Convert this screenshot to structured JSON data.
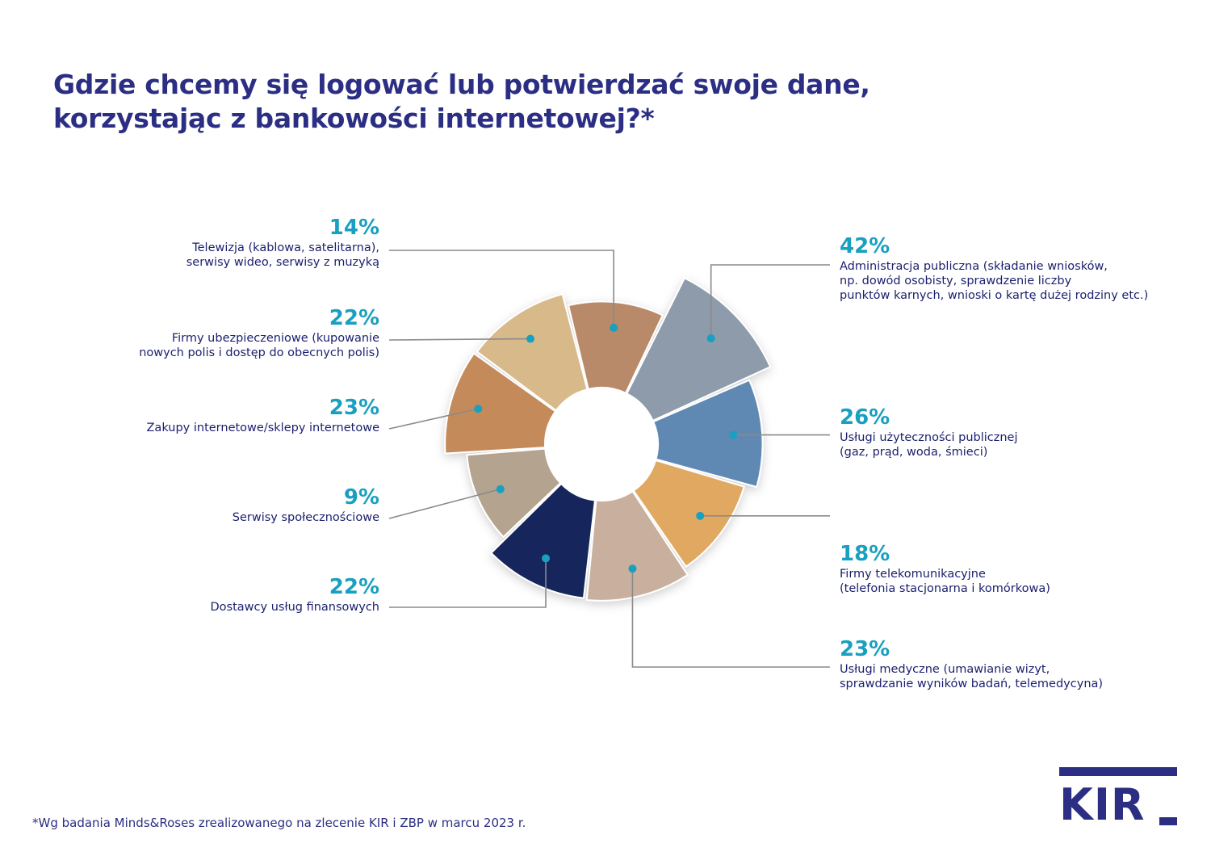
{
  "title": {
    "line1": "Gdzie chcemy się logować lub potwierdzać swoje dane,",
    "line2": "korzystając z bankowości internetowej?*"
  },
  "chart_data": {
    "type": "pie",
    "categories": [
      "Telewizja (kablowa, satelitarna), serwisy wideo, serwisy z muzyką",
      "Administracja publiczna (składanie wniosków, np. dowód osobisty, sprawdzenie liczby punktów karnych, wnioski o kartę dużej rodziny etc.)",
      "Usługi użyteczności publicznej (gaz, prąd, woda, śmieci)",
      "Firmy telekomunikacyjne (telefonia stacjonarna i komórkowa)",
      "Usługi medyczne (umawianie wizyt, sprawdzanie wyników badań, telemedycyna)",
      "Dostawcy usług finansowych",
      "Serwisy społecznościowe",
      "Zakupy internetowe/sklepy internetowe",
      "Firmy ubezpieczeniowe (kupowanie nowych polis i dostęp do obecnych polis)"
    ],
    "values": [
      14,
      42,
      26,
      18,
      23,
      22,
      9,
      23,
      22
    ],
    "unit": "%"
  },
  "labels": [
    {
      "pct": "14%",
      "desc": "Telewizja (kablowa, satelitarna),\nserwisy wideo, serwisy z muzyką"
    },
    {
      "pct": "42%",
      "desc": "Administracja publiczna (składanie wniosków,\nnp. dowód osobisty, sprawdzenie liczby\npunktów karnych, wnioski o kartę dużej rodziny etc.)"
    },
    {
      "pct": "26%",
      "desc": "Usługi użyteczności publicznej\n(gaz, prąd, woda, śmieci)"
    },
    {
      "pct": "18%",
      "desc": "Firmy telekomunikacyjne\n(telefonia stacjonarna i komórkowa)"
    },
    {
      "pct": "23%",
      "desc": "Usługi medyczne (umawianie wizyt,\nsprawdzanie wyników badań, telemedycyna)"
    },
    {
      "pct": "22%",
      "desc": "Dostawcy usług finansowych"
    },
    {
      "pct": "9%",
      "desc": "Serwisy społecznościowe"
    },
    {
      "pct": "23%",
      "desc": "Zakupy internetowe/sklepy internetowe"
    },
    {
      "pct": "22%",
      "desc": "Firmy ubezpieczeniowe (kupowanie\nnowych polis i dostęp do obecnych polis)"
    }
  ],
  "colors": {
    "title": "#2b2e83",
    "accent": "#19a0c0",
    "text": "#1b1f6e",
    "leader": "#8a8a8a",
    "slices": [
      "#b98a6a",
      "#8d9bab",
      "#5f89b3",
      "#e0a861",
      "#c9b09e",
      "#14285c",
      "#b4a38f",
      "#c48a5a",
      "#d8b98a"
    ]
  },
  "footnote": "*Wg badania Minds&Roses zrealizowanego na zlecenie KIR i ZBP w marcu 2023 r.",
  "logo": {
    "text": "KIR"
  }
}
